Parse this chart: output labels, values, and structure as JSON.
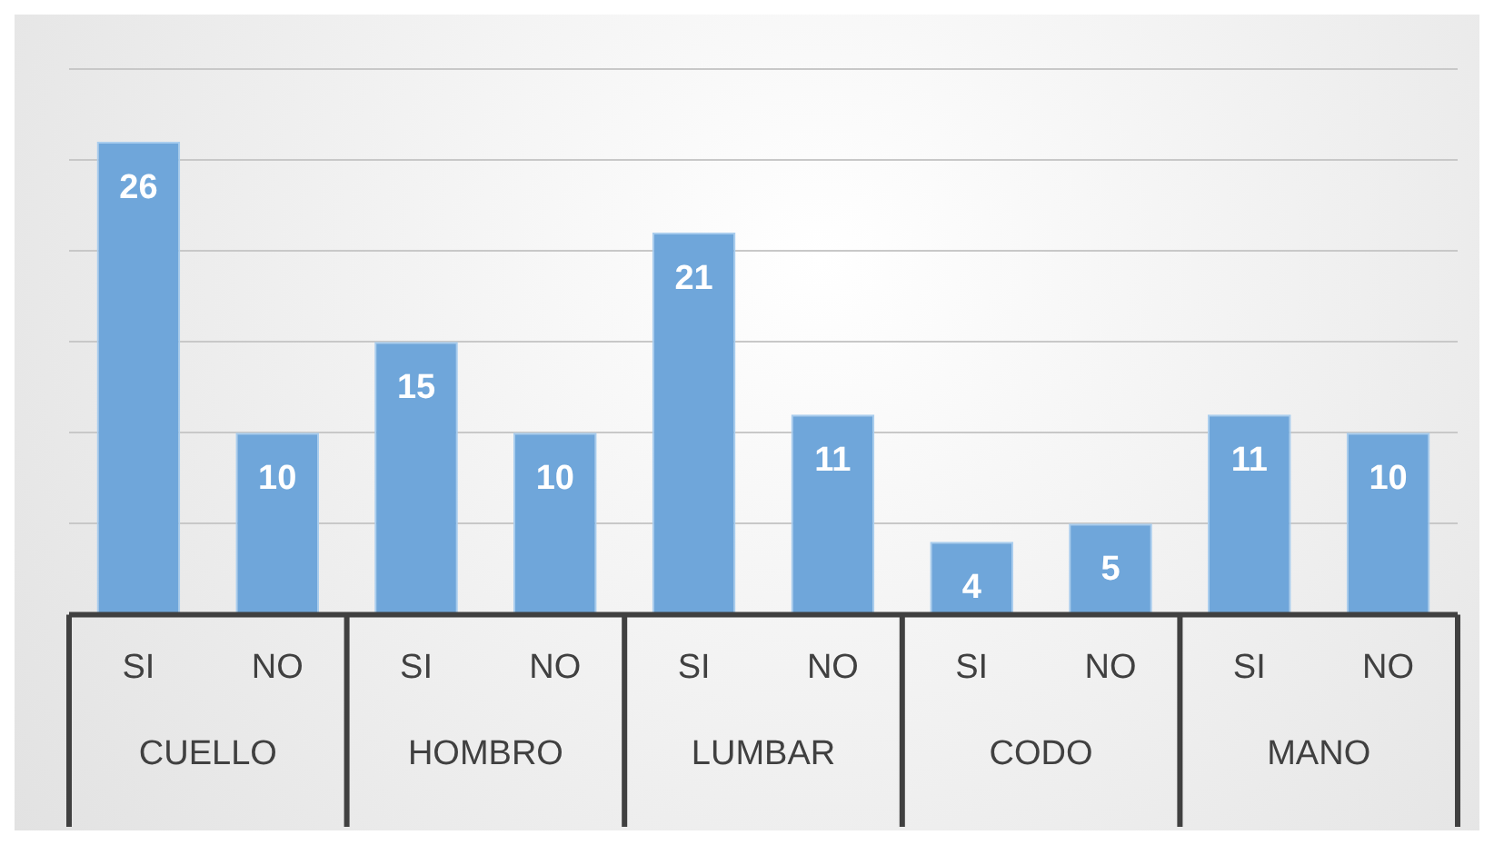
{
  "chart_data": {
    "type": "bar",
    "categories": [
      "SI",
      "NO",
      "SI",
      "NO",
      "SI",
      "NO",
      "SI",
      "NO",
      "SI",
      "NO"
    ],
    "values": [
      26,
      10,
      15,
      10,
      21,
      11,
      4,
      5,
      11,
      10
    ],
    "color": "#6fa6da",
    "ylim": [
      0,
      30
    ],
    "yticks": [
      {
        "value": 0,
        "label": null
      },
      {
        "value": 5,
        "label": null
      },
      {
        "value": 10,
        "label": null
      },
      {
        "value": 15,
        "label": null
      },
      {
        "value": 20,
        "label": null
      },
      {
        "value": 25,
        "label": null
      },
      {
        "value": 30,
        "label": null
      }
    ],
    "tick_labels": "x",
    "grid": "y",
    "data_labels": true,
    "legend": false,
    "annotations": [
      "CUELLO",
      "HOMBRO",
      "LUMBAR",
      "CODO",
      "MANO"
    ]
  }
}
